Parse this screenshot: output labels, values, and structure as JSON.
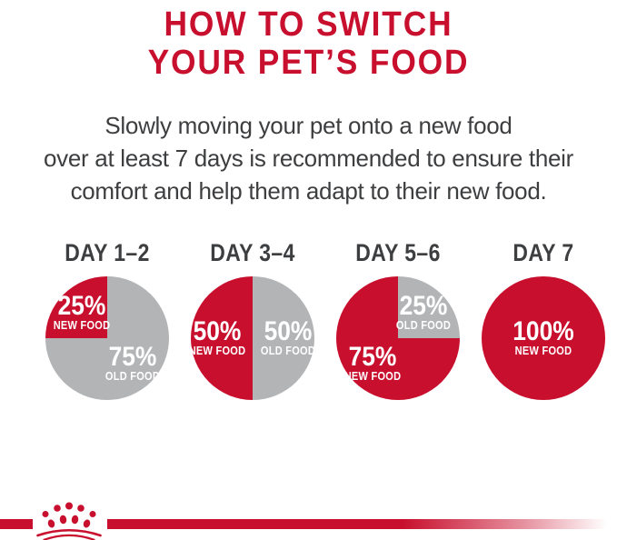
{
  "title": {
    "line1": "HOW TO SWITCH",
    "line2": "YOUR PET’S FOOD"
  },
  "subtitle": {
    "lines": [
      "Slowly moving your pet onto a new food",
      "over at least 7 days is recommended to ensure their",
      "comfort and help them adapt to their new food."
    ]
  },
  "colors": {
    "brand_red": "#C8102E",
    "old_food_gray": "#B2B4B6",
    "text_dark": "#3D3E40",
    "pie_label_white": "#FFFFFF"
  },
  "chart_data": [
    {
      "type": "pie",
      "title": "DAY 1–2",
      "labels_position": "inside",
      "start_angle_deg": 0,
      "direction": "clockwise",
      "slices": [
        {
          "label": "OLD FOOD",
          "value": 75,
          "color_role": "old_food_gray"
        },
        {
          "label": "NEW FOOD",
          "value": 25,
          "color_role": "brand_red"
        }
      ]
    },
    {
      "type": "pie",
      "title": "DAY 3–4",
      "labels_position": "inside",
      "start_angle_deg": 0,
      "direction": "clockwise",
      "slices": [
        {
          "label": "OLD FOOD",
          "value": 50,
          "color_role": "old_food_gray"
        },
        {
          "label": "NEW FOOD",
          "value": 50,
          "color_role": "brand_red"
        }
      ]
    },
    {
      "type": "pie",
      "title": "DAY 5–6",
      "labels_position": "inside",
      "start_angle_deg": 0,
      "direction": "clockwise",
      "slices": [
        {
          "label": "OLD FOOD",
          "value": 25,
          "color_role": "old_food_gray"
        },
        {
          "label": "NEW FOOD",
          "value": 75,
          "color_role": "brand_red"
        }
      ]
    },
    {
      "type": "pie",
      "title": "DAY 7",
      "labels_position": "inside",
      "start_angle_deg": 0,
      "direction": "clockwise",
      "slices": [
        {
          "label": "NEW FOOD",
          "value": 100,
          "color_role": "brand_red"
        }
      ]
    }
  ],
  "footer": {
    "logo": "royal-canin-crown-logo"
  }
}
